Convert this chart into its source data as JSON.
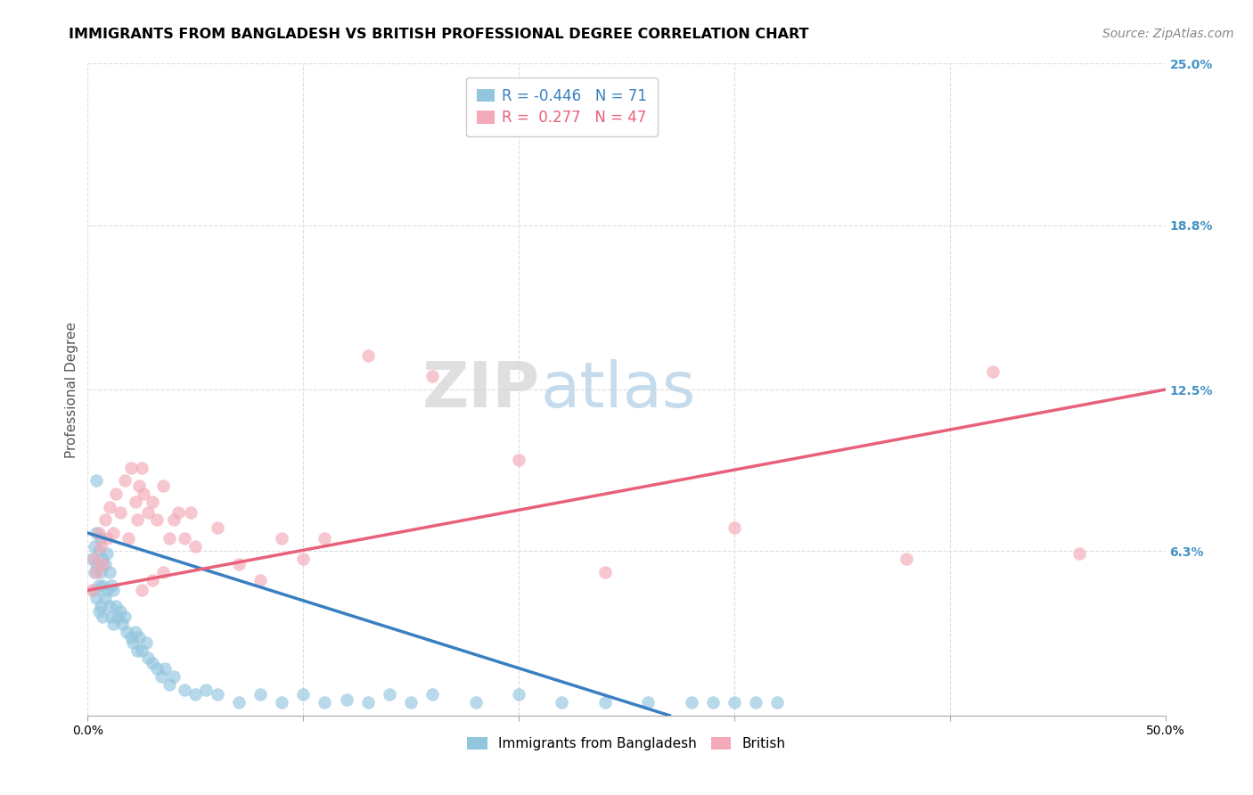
{
  "title": "IMMIGRANTS FROM BANGLADESH VS BRITISH PROFESSIONAL DEGREE CORRELATION CHART",
  "source": "Source: ZipAtlas.com",
  "ylabel": "Professional Degree",
  "xlim": [
    0.0,
    0.5
  ],
  "ylim": [
    0.0,
    0.25
  ],
  "xticks": [
    0.0,
    0.1,
    0.2,
    0.3,
    0.4,
    0.5
  ],
  "xticklabels": [
    "0.0%",
    "",
    "",
    "",
    "",
    "50.0%"
  ],
  "ytick_vals_right": [
    0.25,
    0.188,
    0.125,
    0.063,
    0.0
  ],
  "ytick_labels_right": [
    "25.0%",
    "18.8%",
    "12.5%",
    "6.3%",
    ""
  ],
  "blue_R": -0.446,
  "blue_N": 71,
  "pink_R": 0.277,
  "pink_N": 47,
  "blue_color": "#92c5de",
  "pink_color": "#f4a9b8",
  "blue_line_color": "#3a7fc1",
  "pink_line_color": "#e8607a",
  "watermark_zip": "ZIP",
  "watermark_atlas": "atlas",
  "blue_scatter_x": [
    0.002,
    0.003,
    0.003,
    0.003,
    0.004,
    0.004,
    0.004,
    0.005,
    0.005,
    0.005,
    0.006,
    0.006,
    0.006,
    0.007,
    0.007,
    0.007,
    0.008,
    0.008,
    0.009,
    0.009,
    0.01,
    0.01,
    0.011,
    0.011,
    0.012,
    0.012,
    0.013,
    0.014,
    0.015,
    0.016,
    0.017,
    0.018,
    0.02,
    0.021,
    0.022,
    0.023,
    0.024,
    0.025,
    0.027,
    0.028,
    0.03,
    0.032,
    0.034,
    0.036,
    0.038,
    0.04,
    0.045,
    0.05,
    0.055,
    0.06,
    0.07,
    0.08,
    0.09,
    0.1,
    0.11,
    0.12,
    0.13,
    0.14,
    0.15,
    0.16,
    0.18,
    0.2,
    0.22,
    0.24,
    0.26,
    0.28,
    0.29,
    0.3,
    0.31,
    0.32,
    0.004
  ],
  "blue_scatter_y": [
    0.06,
    0.055,
    0.065,
    0.048,
    0.07,
    0.058,
    0.045,
    0.063,
    0.05,
    0.04,
    0.068,
    0.055,
    0.042,
    0.06,
    0.05,
    0.038,
    0.058,
    0.045,
    0.062,
    0.048,
    0.055,
    0.042,
    0.05,
    0.038,
    0.048,
    0.035,
    0.042,
    0.038,
    0.04,
    0.035,
    0.038,
    0.032,
    0.03,
    0.028,
    0.032,
    0.025,
    0.03,
    0.025,
    0.028,
    0.022,
    0.02,
    0.018,
    0.015,
    0.018,
    0.012,
    0.015,
    0.01,
    0.008,
    0.01,
    0.008,
    0.005,
    0.008,
    0.005,
    0.008,
    0.005,
    0.006,
    0.005,
    0.008,
    0.005,
    0.008,
    0.005,
    0.008,
    0.005,
    0.005,
    0.005,
    0.005,
    0.005,
    0.005,
    0.005,
    0.005,
    0.09
  ],
  "pink_scatter_x": [
    0.002,
    0.003,
    0.004,
    0.005,
    0.006,
    0.007,
    0.008,
    0.009,
    0.01,
    0.012,
    0.013,
    0.015,
    0.017,
    0.019,
    0.02,
    0.022,
    0.023,
    0.024,
    0.025,
    0.026,
    0.028,
    0.03,
    0.032,
    0.035,
    0.038,
    0.04,
    0.042,
    0.045,
    0.048,
    0.05,
    0.06,
    0.07,
    0.08,
    0.09,
    0.1,
    0.11,
    0.13,
    0.16,
    0.2,
    0.24,
    0.3,
    0.38,
    0.42,
    0.46,
    0.025,
    0.03,
    0.035
  ],
  "pink_scatter_y": [
    0.048,
    0.06,
    0.055,
    0.07,
    0.065,
    0.058,
    0.075,
    0.068,
    0.08,
    0.07,
    0.085,
    0.078,
    0.09,
    0.068,
    0.095,
    0.082,
    0.075,
    0.088,
    0.095,
    0.085,
    0.078,
    0.082,
    0.075,
    0.088,
    0.068,
    0.075,
    0.078,
    0.068,
    0.078,
    0.065,
    0.072,
    0.058,
    0.052,
    0.068,
    0.06,
    0.068,
    0.138,
    0.13,
    0.098,
    0.055,
    0.072,
    0.06,
    0.132,
    0.062,
    0.048,
    0.052,
    0.055
  ],
  "blue_trend_start_x": 0.0,
  "blue_trend_start_y": 0.07,
  "blue_trend_end_x": 0.27,
  "blue_trend_end_y": 0.0,
  "pink_trend_start_x": 0.0,
  "pink_trend_start_y": 0.048,
  "pink_trend_end_x": 0.5,
  "pink_trend_end_y": 0.125,
  "grid_color": "#dddddd",
  "title_fontsize": 11.5,
  "label_fontsize": 11,
  "tick_fontsize": 10,
  "legend_fontsize": 12,
  "source_fontsize": 10
}
